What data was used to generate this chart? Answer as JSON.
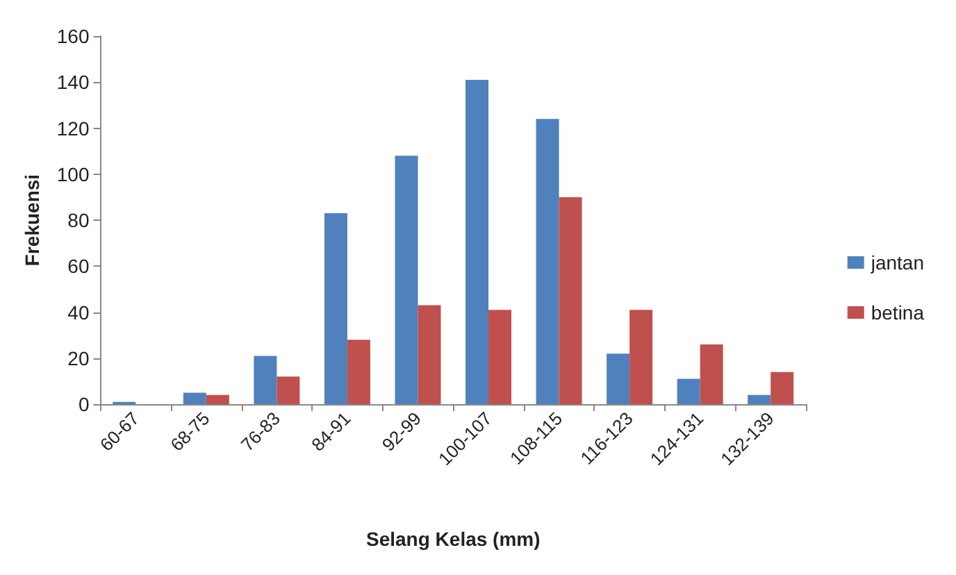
{
  "chart_data": {
    "type": "bar",
    "xlabel": "Selang Kelas (mm)",
    "ylabel": "Frekuensi",
    "categories": [
      "60-67",
      "68-75",
      "76-83",
      "84-91",
      "92-99",
      "100-107",
      "108-115",
      "116-123",
      "124-131",
      "132-139"
    ],
    "series": [
      {
        "name": "jantan",
        "color": "#4f81bd",
        "values": [
          1,
          5,
          21,
          83,
          108,
          141,
          124,
          22,
          11,
          4
        ]
      },
      {
        "name": "betina",
        "color": "#c0504d",
        "values": [
          0,
          4,
          12,
          28,
          43,
          41,
          90,
          41,
          26,
          14
        ]
      }
    ],
    "ylim": [
      0,
      160
    ],
    "yticks": [
      0,
      20,
      40,
      60,
      80,
      100,
      120,
      140,
      160
    ],
    "grid": false,
    "legend": "right"
  }
}
